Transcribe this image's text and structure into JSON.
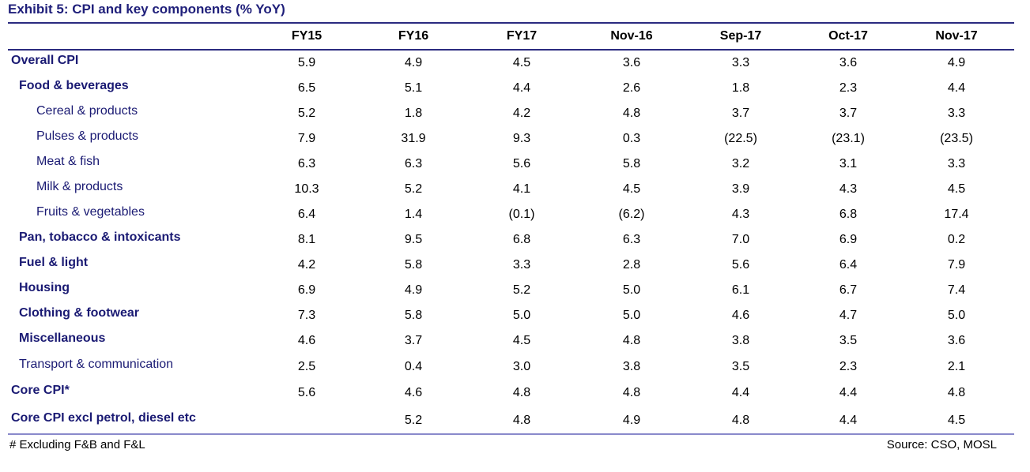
{
  "title": "Exhibit 5: CPI and key components (% YoY)",
  "chart_data": {
    "type": "table",
    "columns": [
      "FY15",
      "FY16",
      "FY17",
      "Nov-16",
      "Sep-17",
      "Oct-17",
      "Nov-17"
    ],
    "rows": [
      {
        "label": "Overall CPI",
        "level": 0,
        "values": [
          "5.9",
          "4.9",
          "4.5",
          "3.6",
          "3.3",
          "3.6",
          "4.9"
        ]
      },
      {
        "label": "Food & beverages",
        "level": 1,
        "values": [
          "6.5",
          "5.1",
          "4.4",
          "2.6",
          "1.8",
          "2.3",
          "4.4"
        ]
      },
      {
        "label": "Cereal & products",
        "level": 2,
        "values": [
          "5.2",
          "1.8",
          "4.2",
          "4.8",
          "3.7",
          "3.7",
          "3.3"
        ]
      },
      {
        "label": "Pulses & products",
        "level": 2,
        "values": [
          "7.9",
          "31.9",
          "9.3",
          "0.3",
          "(22.5)",
          "(23.1)",
          "(23.5)"
        ]
      },
      {
        "label": "Meat & fish",
        "level": 2,
        "values": [
          "6.3",
          "6.3",
          "5.6",
          "5.8",
          "3.2",
          "3.1",
          "3.3"
        ]
      },
      {
        "label": "Milk & products",
        "level": 2,
        "values": [
          "10.3",
          "5.2",
          "4.1",
          "4.5",
          "3.9",
          "4.3",
          "4.5"
        ]
      },
      {
        "label": "Fruits & vegetables",
        "level": 2,
        "values": [
          "6.4",
          "1.4",
          "(0.1)",
          "(6.2)",
          "4.3",
          "6.8",
          "17.4"
        ]
      },
      {
        "label": "Pan, tobacco & intoxicants",
        "level": 1,
        "values": [
          "8.1",
          "9.5",
          "6.8",
          "6.3",
          "7.0",
          "6.9",
          "0.2"
        ]
      },
      {
        "label": "Fuel & light",
        "level": 1,
        "values": [
          "4.2",
          "5.8",
          "3.3",
          "2.8",
          "5.6",
          "6.4",
          "7.9"
        ]
      },
      {
        "label": "Housing",
        "level": 1,
        "values": [
          "6.9",
          "4.9",
          "5.2",
          "5.0",
          "6.1",
          "6.7",
          "7.4"
        ]
      },
      {
        "label": "Clothing & footwear",
        "level": 1,
        "values": [
          "7.3",
          "5.8",
          "5.0",
          "5.0",
          "4.6",
          "4.7",
          "5.0"
        ]
      },
      {
        "label": "Miscellaneous",
        "level": 1,
        "values": [
          "4.6",
          "3.7",
          "4.5",
          "4.8",
          "3.8",
          "3.5",
          "3.6"
        ]
      },
      {
        "label": "Transport & communication",
        "level": 3,
        "values": [
          "2.5",
          "0.4",
          "3.0",
          "3.8",
          "3.5",
          "2.3",
          "2.1"
        ]
      },
      {
        "label": "Core CPI*",
        "level": 0,
        "values": [
          "5.6",
          "4.6",
          "4.8",
          "4.8",
          "4.4",
          "4.4",
          "4.8"
        ]
      },
      {
        "label": "Core CPI excl petrol, diesel etc",
        "level": 0,
        "values": [
          "",
          "5.2",
          "4.8",
          "4.9",
          "4.8",
          "4.4",
          "4.5"
        ]
      }
    ]
  },
  "footnote": "# Excluding F&B and F&L",
  "source": "Source: CSO, MOSL",
  "colors": {
    "label_text": "#1a1a73",
    "rule": "#2b2b80",
    "bottom_rule": "#8a8acb"
  }
}
